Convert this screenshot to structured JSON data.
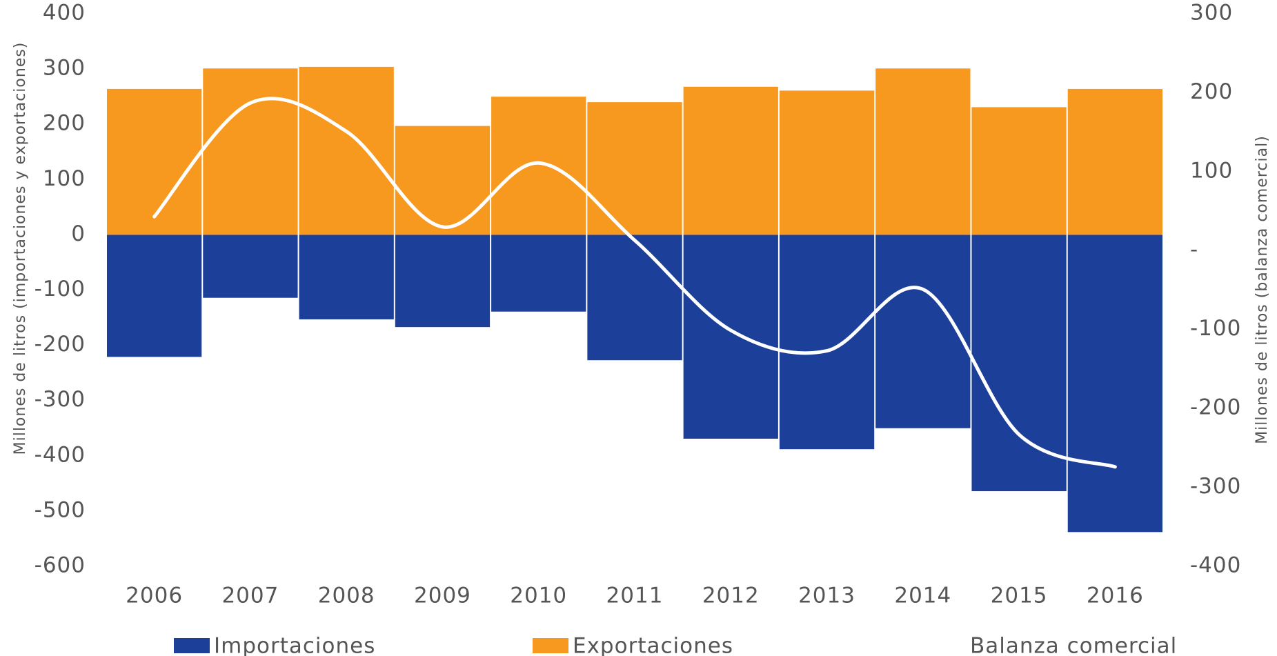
{
  "chart_data": {
    "type": "bar",
    "categories": [
      "2006",
      "2007",
      "2008",
      "2009",
      "2010",
      "2011",
      "2012",
      "2013",
      "2014",
      "2015",
      "2016"
    ],
    "series": [
      {
        "name": "Importaciones",
        "color": "#1c3f99",
        "values": [
          -221,
          -114,
          -153,
          -167,
          -139,
          -227,
          -369,
          -388,
          -350,
          -464,
          -538
        ]
      },
      {
        "name": "Exportaciones",
        "color": "#f7981f",
        "values": [
          264,
          301,
          304,
          197,
          250,
          240,
          268,
          261,
          301,
          231,
          264
        ]
      },
      {
        "name": "Balanza comercial",
        "color": "#ffffff",
        "type": "line",
        "axis": "y2",
        "values": [
          43,
          187,
          151,
          30,
          111,
          13,
          -101,
          -127,
          -49,
          -233,
          -274
        ]
      }
    ],
    "ylabel": "Millones de litros  (importaciones y exportaciones)",
    "y2label": "Millones de litros (balanza comercial)",
    "ylim": [
      -600,
      400
    ],
    "yticks": [
      -600,
      -500,
      -400,
      -300,
      -200,
      -100,
      0,
      100,
      200,
      300,
      400
    ],
    "y2lim": [
      -400,
      300
    ],
    "y2ticks": [
      -400,
      -300,
      -200,
      -100,
      {
        "value": 0,
        "label": "-"
      },
      100,
      200,
      300
    ]
  }
}
